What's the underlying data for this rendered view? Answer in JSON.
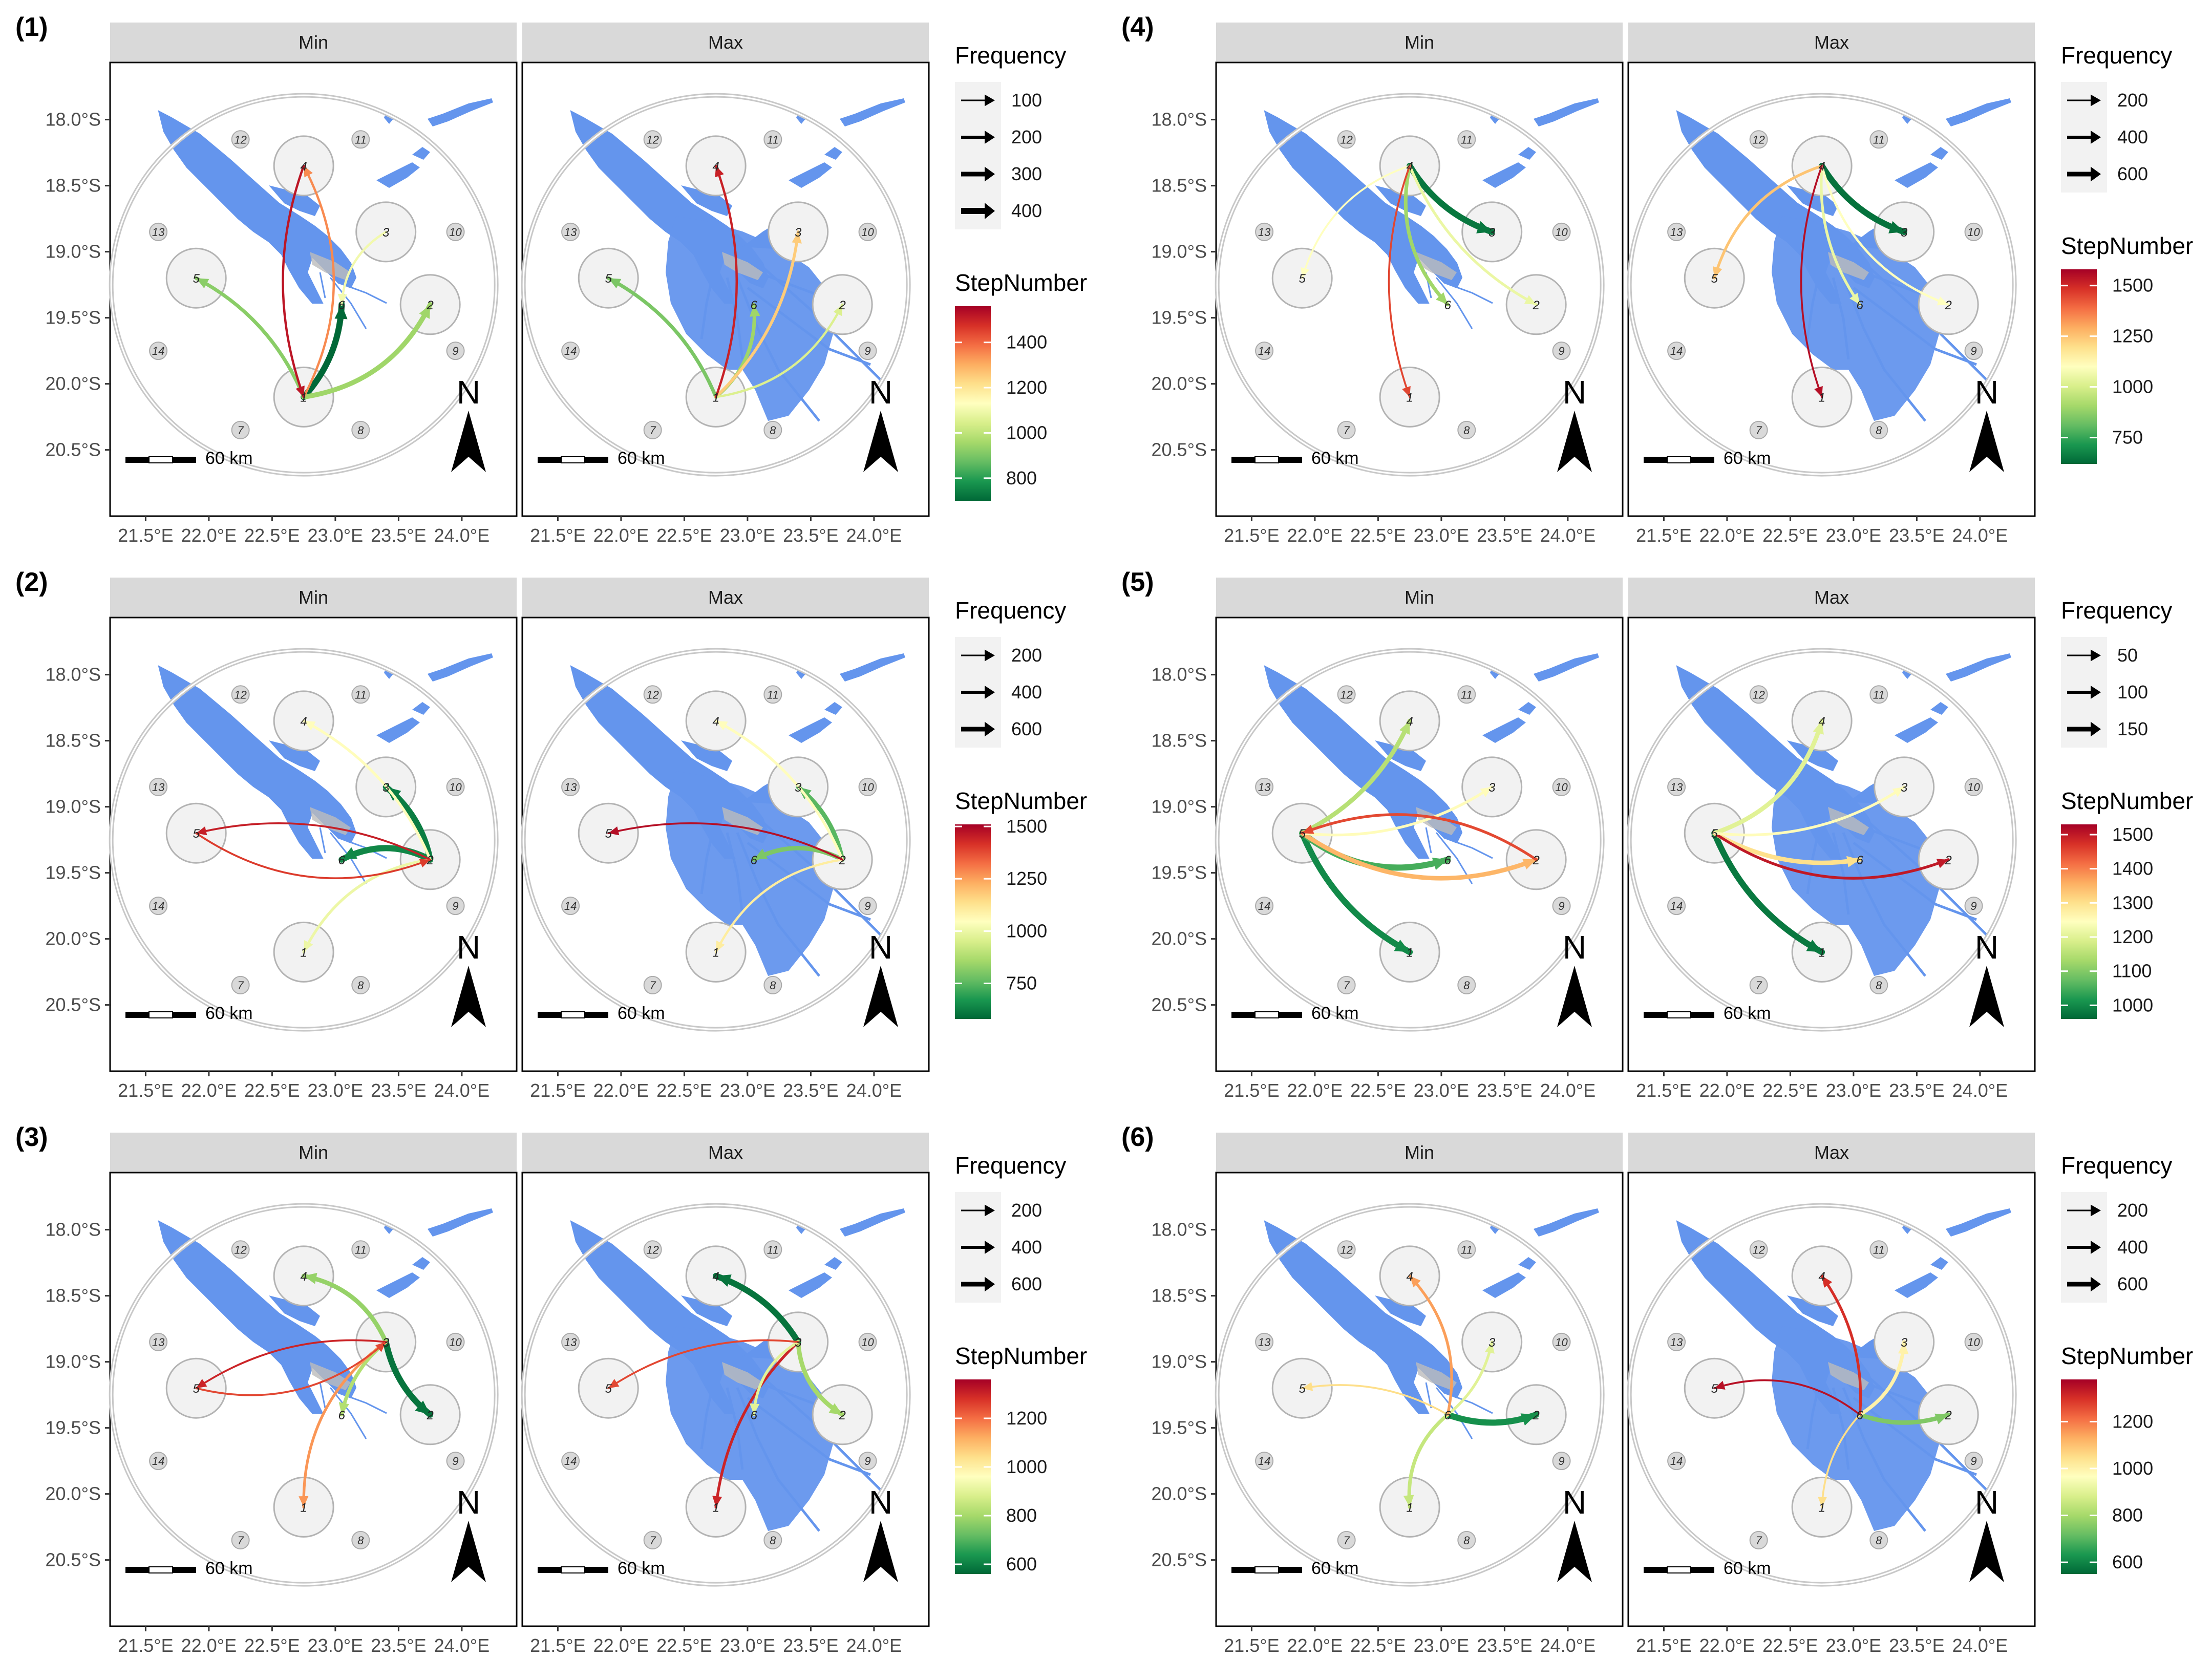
{
  "figure": {
    "facet_labels": [
      "Min",
      "Max"
    ],
    "x_ticks": [
      "21.5°E",
      "22.0°E",
      "22.5°E",
      "23.0°E",
      "23.5°E",
      "24.0°E"
    ],
    "y_ticks": [
      "18.0°S",
      "18.5°S",
      "19.0°S",
      "19.5°S",
      "20.0°S",
      "20.5°S"
    ],
    "scale_bar_label": "60 km",
    "north_label": "N",
    "legend_frequency_title": "Frequency",
    "legend_step_title": "StepNumber",
    "water_color": "#6495ED",
    "node_fill": "#f2f2f2",
    "ring_color": "#c8c8c8",
    "color_scale": [
      "#006837",
      "#1a9850",
      "#66bd63",
      "#a6d96a",
      "#d9ef8b",
      "#ffffbf",
      "#fee08b",
      "#fdae61",
      "#f46d43",
      "#d73027",
      "#a50026"
    ],
    "ring_labels": [
      "7",
      "8",
      "9",
      "10",
      "11",
      "12",
      "13",
      "14"
    ],
    "node_labels": [
      "1",
      "2",
      "3",
      "4",
      "5",
      "6"
    ]
  },
  "panels": [
    {
      "label": "(1)",
      "frequency_breaks": [
        "100",
        "200",
        "300",
        "400"
      ],
      "step_breaks": [
        "1400",
        "1200",
        "1000",
        "800"
      ],
      "step_range": [
        700,
        1560
      ]
    },
    {
      "label": "(2)",
      "frequency_breaks": [
        "200",
        "400",
        "600"
      ],
      "step_breaks": [
        "1500",
        "1250",
        "1000",
        "750"
      ],
      "step_range": [
        580,
        1510
      ]
    },
    {
      "label": "(3)",
      "frequency_breaks": [
        "200",
        "400",
        "600"
      ],
      "step_breaks": [
        "1200",
        "1000",
        "800",
        "600"
      ],
      "step_range": [
        560,
        1360
      ]
    },
    {
      "label": "(4)",
      "frequency_breaks": [
        "200",
        "400",
        "600"
      ],
      "step_breaks": [
        "1500",
        "1250",
        "1000",
        "750"
      ],
      "step_range": [
        620,
        1580
      ]
    },
    {
      "label": "(5)",
      "frequency_breaks": [
        "50",
        "100",
        "150"
      ],
      "step_breaks": [
        "1500",
        "1400",
        "1300",
        "1200",
        "1100",
        "1000"
      ],
      "step_range": [
        960,
        1530
      ]
    },
    {
      "label": "(6)",
      "frequency_breaks": [
        "200",
        "400",
        "600"
      ],
      "step_breaks": [
        "1200",
        "1000",
        "800",
        "600"
      ],
      "step_range": [
        550,
        1380
      ]
    }
  ],
  "chart_data": {
    "type": "flow-map",
    "note_units": "arrows between numbered locations, colour = StepNumber, width = Frequency",
    "panels": [
      {
        "label": "(1)",
        "Min": [
          {
            "from": "1",
            "to": "6",
            "frequency": 400,
            "step": 700
          },
          {
            "from": "1",
            "to": "2",
            "frequency": 300,
            "step": 950
          },
          {
            "from": "1",
            "to": "5",
            "frequency": 200,
            "step": 920
          },
          {
            "from": "1",
            "to": "4",
            "frequency": 100,
            "step": 1350
          },
          {
            "from": "4",
            "to": "1",
            "frequency": 100,
            "step": 1520
          },
          {
            "from": "3",
            "to": "6",
            "frequency": 100,
            "step": 1100
          }
        ],
        "Max": [
          {
            "from": "1",
            "to": "5",
            "frequency": 200,
            "step": 900
          },
          {
            "from": "1",
            "to": "6",
            "frequency": 200,
            "step": 950
          },
          {
            "from": "1",
            "to": "3",
            "frequency": 150,
            "step": 1250
          },
          {
            "from": "1",
            "to": "2",
            "frequency": 100,
            "step": 1050
          },
          {
            "from": "1",
            "to": "4",
            "frequency": 100,
            "step": 1500
          }
        ]
      },
      {
        "label": "(2)",
        "Min": [
          {
            "from": "2",
            "to": "3",
            "frequency": 600,
            "step": 620
          },
          {
            "from": "2",
            "to": "6",
            "frequency": 600,
            "step": 640
          },
          {
            "from": "2",
            "to": "4",
            "frequency": 200,
            "step": 1050
          },
          {
            "from": "2",
            "to": "1",
            "frequency": 200,
            "step": 1000
          },
          {
            "from": "2",
            "to": "5",
            "frequency": 100,
            "step": 1450
          },
          {
            "from": "5",
            "to": "2",
            "frequency": 100,
            "step": 1400
          }
        ],
        "Max": [
          {
            "from": "2",
            "to": "3",
            "frequency": 400,
            "step": 750
          },
          {
            "from": "2",
            "to": "6",
            "frequency": 400,
            "step": 800
          },
          {
            "from": "2",
            "to": "4",
            "frequency": 200,
            "step": 1050
          },
          {
            "from": "2",
            "to": "1",
            "frequency": 150,
            "step": 1100
          },
          {
            "from": "2",
            "to": "5",
            "frequency": 100,
            "step": 1480
          }
        ]
      },
      {
        "label": "(3)",
        "Min": [
          {
            "from": "3",
            "to": "2",
            "frequency": 600,
            "step": 580
          },
          {
            "from": "3",
            "to": "4",
            "frequency": 400,
            "step": 780
          },
          {
            "from": "3",
            "to": "6",
            "frequency": 300,
            "step": 820
          },
          {
            "from": "3",
            "to": "1",
            "frequency": 200,
            "step": 1150
          },
          {
            "from": "3",
            "to": "5",
            "frequency": 100,
            "step": 1300
          },
          {
            "from": "5",
            "to": "3",
            "frequency": 100,
            "step": 1250
          }
        ],
        "Max": [
          {
            "from": "3",
            "to": "4",
            "frequency": 600,
            "step": 580
          },
          {
            "from": "3",
            "to": "2",
            "frequency": 400,
            "step": 800
          },
          {
            "from": "3",
            "to": "1",
            "frequency": 200,
            "step": 1300
          },
          {
            "from": "3",
            "to": "6",
            "frequency": 200,
            "step": 900
          },
          {
            "from": "3",
            "to": "5",
            "frequency": 100,
            "step": 1250
          }
        ]
      },
      {
        "label": "(4)",
        "Min": [
          {
            "from": "4",
            "to": "3",
            "frequency": 600,
            "step": 650
          },
          {
            "from": "4",
            "to": "6",
            "frequency": 300,
            "step": 900
          },
          {
            "from": "4",
            "to": "2",
            "frequency": 200,
            "step": 1050
          },
          {
            "from": "4",
            "to": "5",
            "frequency": 100,
            "step": 1100
          },
          {
            "from": "4",
            "to": "1",
            "frequency": 100,
            "step": 1450
          }
        ],
        "Max": [
          {
            "from": "4",
            "to": "3",
            "frequency": 600,
            "step": 640
          },
          {
            "from": "4",
            "to": "5",
            "frequency": 200,
            "step": 1250
          },
          {
            "from": "4",
            "to": "6",
            "frequency": 200,
            "step": 1050
          },
          {
            "from": "4",
            "to": "2",
            "frequency": 150,
            "step": 1100
          },
          {
            "from": "4",
            "to": "1",
            "frequency": 100,
            "step": 1550
          }
        ]
      },
      {
        "label": "(5)",
        "Min": [
          {
            "from": "5",
            "to": "1",
            "frequency": 150,
            "step": 1000
          },
          {
            "from": "5",
            "to": "6",
            "frequency": 150,
            "step": 1050
          },
          {
            "from": "5",
            "to": "4",
            "frequency": 100,
            "step": 1150
          },
          {
            "from": "5",
            "to": "2",
            "frequency": 100,
            "step": 1350
          },
          {
            "from": "5",
            "to": "3",
            "frequency": 50,
            "step": 1250
          },
          {
            "from": "2",
            "to": "5",
            "frequency": 50,
            "step": 1450
          }
        ],
        "Max": [
          {
            "from": "5",
            "to": "1",
            "frequency": 150,
            "step": 980
          },
          {
            "from": "5",
            "to": "4",
            "frequency": 100,
            "step": 1200
          },
          {
            "from": "5",
            "to": "6",
            "frequency": 100,
            "step": 1300
          },
          {
            "from": "5",
            "to": "2",
            "frequency": 50,
            "step": 1500
          },
          {
            "from": "5",
            "to": "3",
            "frequency": 50,
            "step": 1250
          }
        ]
      },
      {
        "label": "(6)",
        "Min": [
          {
            "from": "6",
            "to": "2",
            "frequency": 600,
            "step": 620
          },
          {
            "from": "6",
            "to": "1",
            "frequency": 300,
            "step": 850
          },
          {
            "from": "6",
            "to": "3",
            "frequency": 200,
            "step": 900
          },
          {
            "from": "6",
            "to": "4",
            "frequency": 200,
            "step": 1150
          },
          {
            "from": "6",
            "to": "5",
            "frequency": 100,
            "step": 1050
          }
        ],
        "Max": [
          {
            "from": "6",
            "to": "2",
            "frequency": 400,
            "step": 750
          },
          {
            "from": "6",
            "to": "3",
            "frequency": 300,
            "step": 1000
          },
          {
            "from": "6",
            "to": "4",
            "frequency": 200,
            "step": 1300
          },
          {
            "from": "6",
            "to": "5",
            "frequency": 100,
            "step": 1350
          },
          {
            "from": "6",
            "to": "1",
            "frequency": 100,
            "step": 1050
          }
        ]
      }
    ]
  }
}
